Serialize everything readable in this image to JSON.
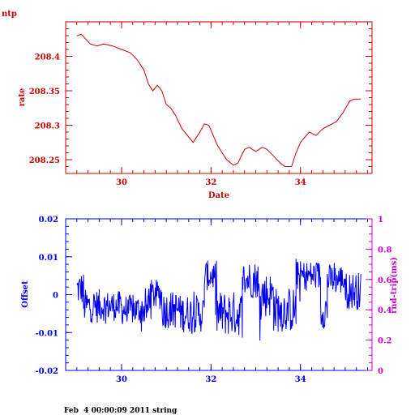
{
  "colors": {
    "top": "#cc0000",
    "offset": "#0000ee",
    "rtt": "#cc00cc",
    "text": "#000000"
  },
  "footer": "Feb  4 00:00:09 2011 string",
  "chart_data": [
    {
      "type": "line",
      "title": "ntp",
      "xlabel": "Date",
      "ylabel": "rate",
      "xlim": [
        28.75,
        35.6
      ],
      "ylim": [
        208.23,
        208.45
      ],
      "xticks": [
        30,
        32,
        34
      ],
      "xtick_labels": [
        "30",
        "32",
        "34"
      ],
      "yticks": [
        208.25,
        208.3,
        208.35,
        208.4
      ],
      "ytick_labels": [
        "208.25",
        "208.3",
        "208.35",
        "208.4"
      ],
      "series": [
        {
          "x": [
            29.0,
            29.1,
            29.2,
            29.3,
            29.45,
            29.6,
            29.8,
            30.0,
            30.2,
            30.35,
            30.5,
            30.6,
            30.7,
            30.8,
            30.9,
            31.0,
            31.1,
            31.2,
            31.35,
            31.5,
            31.6,
            31.75,
            31.85,
            31.95,
            32.05,
            32.15,
            32.25,
            32.35,
            32.5,
            32.6,
            32.75,
            32.85,
            33.0,
            33.15,
            33.25,
            33.4,
            33.55,
            33.65,
            33.8,
            33.9,
            34.0,
            34.1,
            34.2,
            34.35,
            34.5,
            34.65,
            34.8,
            34.95,
            35.1,
            35.2,
            35.35
          ],
          "y": [
            208.43,
            208.432,
            208.425,
            208.418,
            208.415,
            208.418,
            208.415,
            208.41,
            208.405,
            208.395,
            208.38,
            208.36,
            208.35,
            208.358,
            208.35,
            208.33,
            208.325,
            208.315,
            208.295,
            208.283,
            208.275,
            208.29,
            208.302,
            208.3,
            208.285,
            208.27,
            208.26,
            208.25,
            208.242,
            208.245,
            208.265,
            208.268,
            208.262,
            208.268,
            208.265,
            208.255,
            208.245,
            208.24,
            208.24,
            208.26,
            208.275,
            208.283,
            208.29,
            208.285,
            208.295,
            208.3,
            208.305,
            208.318,
            208.335,
            208.338,
            208.338
          ]
        }
      ]
    },
    {
      "type": "line",
      "title": "",
      "xlabel": "",
      "ylabel": "Offset",
      "ylabel_right": "rnd-trip(ms)",
      "xlim": [
        28.75,
        35.6
      ],
      "ylim": [
        -0.02,
        0.02
      ],
      "ylim_right": [
        0,
        1
      ],
      "xticks": [
        30,
        32,
        34
      ],
      "xtick_labels": [
        "30",
        "32",
        "34"
      ],
      "yticks": [
        -0.02,
        -0.01,
        0,
        0.01,
        0.02
      ],
      "ytick_labels": [
        "-0.02",
        "-0.01",
        "0",
        "0.01",
        "0.02"
      ],
      "yticks_right": [
        0,
        0.2,
        0.4,
        0.6,
        0.8,
        1
      ],
      "ytick_labels_right": [
        "0",
        "0.2",
        "0.4",
        "0.6",
        "0.8",
        "1"
      ],
      "series": [
        {
          "name": "Offset",
          "segments": [
            {
              "x": [
                29.0,
                29.15
              ],
              "mean": 0.0015,
              "spread": 0.0045
            },
            {
              "x": [
                29.15,
                29.5
              ],
              "mean": -0.003,
              "spread": 0.0045
            },
            {
              "x": [
                29.5,
                30.0
              ],
              "mean": -0.003,
              "spread": 0.004
            },
            {
              "x": [
                30.0,
                30.6
              ],
              "mean": -0.004,
              "spread": 0.004
            },
            {
              "x": [
                30.6,
                30.9
              ],
              "mean": 0.0,
              "spread": 0.004
            },
            {
              "x": [
                30.9,
                31.3
              ],
              "mean": -0.004,
              "spread": 0.005
            },
            {
              "x": [
                31.3,
                31.85
              ],
              "mean": -0.005,
              "spread": 0.005
            },
            {
              "x": [
                31.85,
                32.1
              ],
              "mean": 0.005,
              "spread": 0.004
            },
            {
              "x": [
                32.1,
                32.7
              ],
              "mean": -0.005,
              "spread": 0.006
            },
            {
              "x": [
                32.7,
                33.05
              ],
              "mean": 0.004,
              "spread": 0.005
            },
            {
              "x": [
                33.05,
                33.4
              ],
              "mean": 0.0,
              "spread": 0.006
            },
            {
              "x": [
                33.4,
                33.9
              ],
              "mean": -0.004,
              "spread": 0.006
            },
            {
              "x": [
                33.9,
                34.45
              ],
              "mean": 0.005,
              "spread": 0.004
            },
            {
              "x": [
                34.45,
                34.6
              ],
              "mean": -0.004,
              "spread": 0.005
            },
            {
              "x": [
                34.6,
                35.0
              ],
              "mean": 0.004,
              "spread": 0.004
            },
            {
              "x": [
                35.0,
                35.35
              ],
              "mean": 0.001,
              "spread": 0.005
            }
          ]
        }
      ]
    }
  ]
}
